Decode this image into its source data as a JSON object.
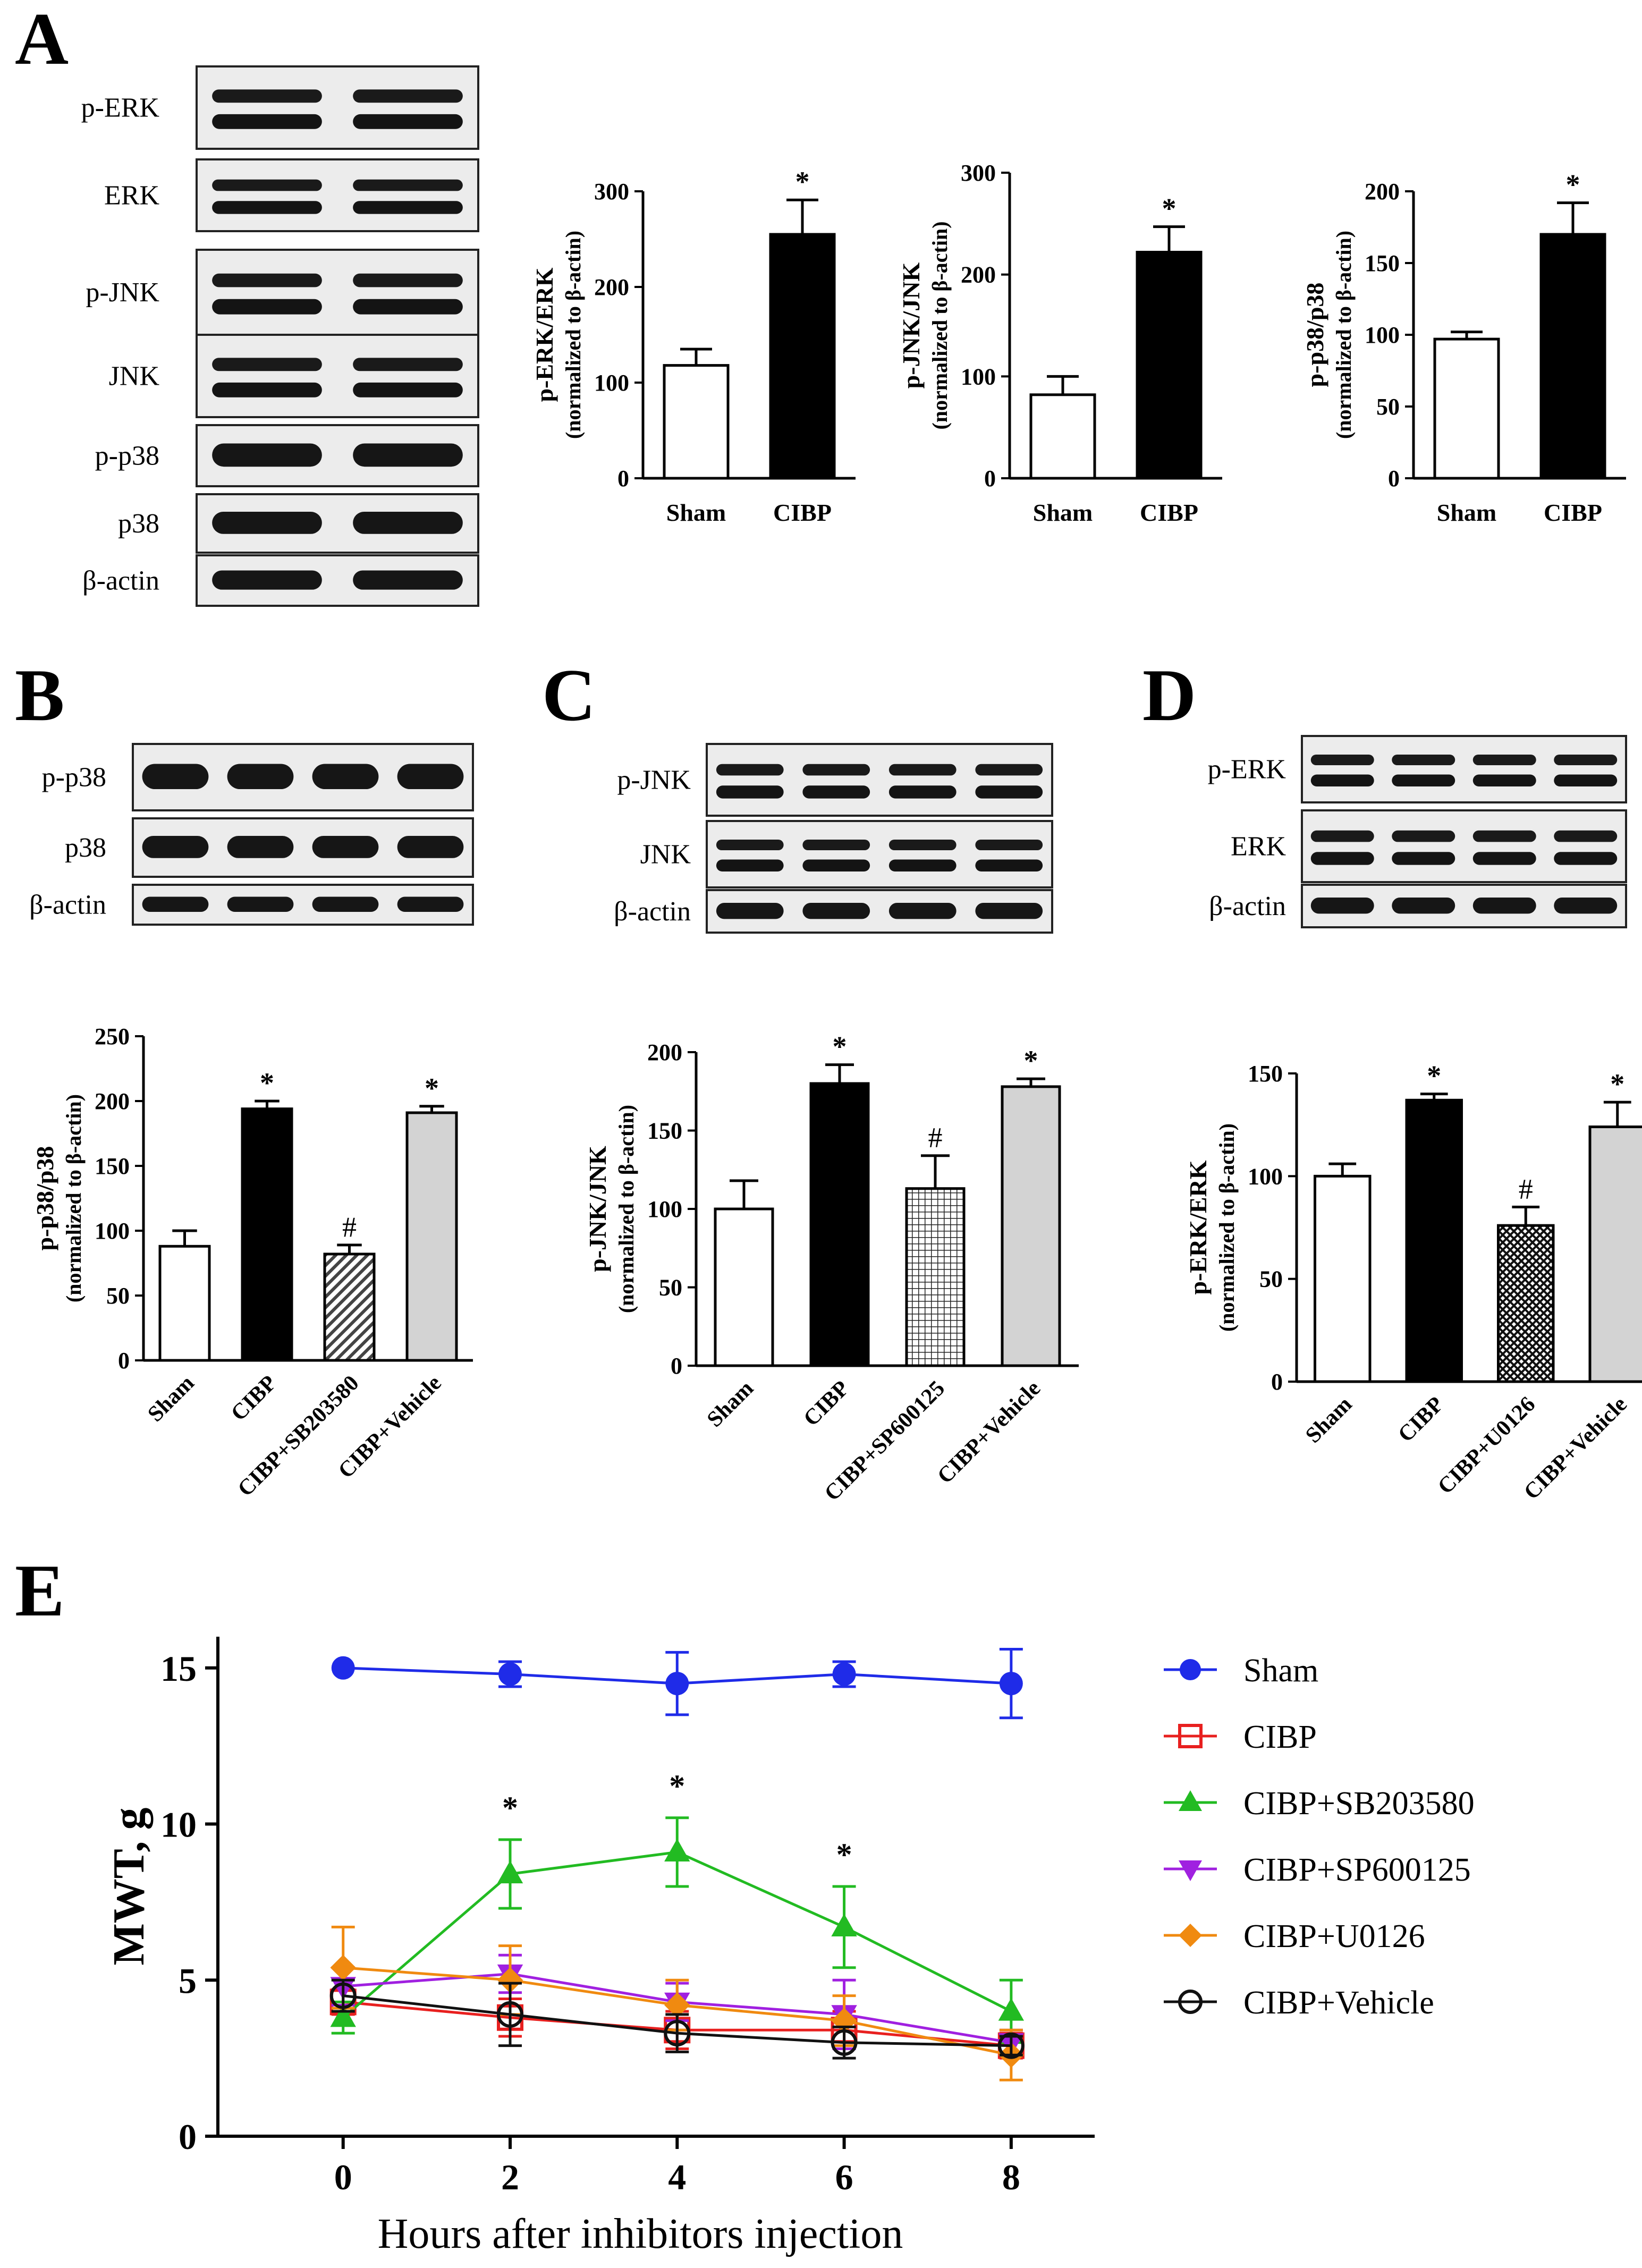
{
  "panel_labels": [
    "A",
    "B",
    "C",
    "D",
    "E"
  ],
  "blots": {
    "A": {
      "labels": [
        "p-ERK",
        "ERK",
        "p-JNK",
        "JNK",
        "p-p38",
        "p38",
        "β-actin"
      ]
    },
    "B": {
      "labels": [
        "p-p38",
        "p38",
        "β-actin"
      ]
    },
    "C": {
      "labels": [
        "p-JNK",
        "JNK",
        "β-actin"
      ]
    },
    "D": {
      "labels": [
        "p-ERK",
        "ERK",
        "β-actin"
      ]
    }
  },
  "chart_data": [
    {
      "id": "A1",
      "type": "bar",
      "categories": [
        "Sham",
        "CIBP"
      ],
      "values": [
        118,
        255
      ],
      "errors": [
        17,
        36
      ],
      "marks": [
        "",
        "*"
      ],
      "patterns": [
        "white",
        "black"
      ],
      "ylabel": "p-ERK/ERK",
      "ylabel2": "(normalized to β-actin)",
      "ylim": [
        0,
        300
      ],
      "yticks": [
        0,
        100,
        200,
        300
      ],
      "rotate": false
    },
    {
      "id": "A2",
      "type": "bar",
      "categories": [
        "Sham",
        "CIBP"
      ],
      "values": [
        82,
        222
      ],
      "errors": [
        18,
        25
      ],
      "marks": [
        "",
        "*"
      ],
      "patterns": [
        "white",
        "black"
      ],
      "ylabel": "p-JNK/JNK",
      "ylabel2": "(normalized to β-actin)",
      "ylim": [
        0,
        300
      ],
      "yticks": [
        0,
        100,
        200,
        300
      ],
      "rotate": false
    },
    {
      "id": "A3",
      "type": "bar",
      "categories": [
        "Sham",
        "CIBP"
      ],
      "values": [
        97,
        170
      ],
      "errors": [
        5,
        22
      ],
      "marks": [
        "",
        "*"
      ],
      "patterns": [
        "white",
        "black"
      ],
      "ylabel": "p-p38/p38",
      "ylabel2": "(normalized to β-actin)",
      "ylim": [
        0,
        200
      ],
      "yticks": [
        0,
        50,
        100,
        150,
        200
      ],
      "rotate": false
    },
    {
      "id": "B",
      "type": "bar",
      "categories": [
        "Sham",
        "CIBP",
        "CIBP+SB203580",
        "CIBP+Vehicle"
      ],
      "values": [
        88,
        194,
        82,
        191
      ],
      "errors": [
        12,
        6,
        7,
        5
      ],
      "marks": [
        "",
        "*",
        "#",
        "*"
      ],
      "patterns": [
        "white",
        "black",
        "diag",
        "gray"
      ],
      "ylabel": "p-p38/p38",
      "ylabel2": "(normalized to β-actin)",
      "ylim": [
        0,
        250
      ],
      "yticks": [
        0,
        50,
        100,
        150,
        200,
        250
      ],
      "rotate": true
    },
    {
      "id": "C",
      "type": "bar",
      "categories": [
        "Sham",
        "CIBP",
        "CIBP+SP600125",
        "CIBP+Vehicle"
      ],
      "values": [
        100,
        180,
        113,
        178
      ],
      "errors": [
        18,
        12,
        21,
        5
      ],
      "marks": [
        "",
        "*",
        "#",
        "*"
      ],
      "patterns": [
        "white",
        "black",
        "grid",
        "gray"
      ],
      "ylabel": "p-JNK/JNK",
      "ylabel2": "(normalized to β-actin)",
      "ylim": [
        0,
        200
      ],
      "yticks": [
        0,
        50,
        100,
        150,
        200
      ],
      "rotate": true
    },
    {
      "id": "D",
      "type": "bar",
      "categories": [
        "Sham",
        "CIBP",
        "CIBP+U0126",
        "CIBP+Vehicle"
      ],
      "values": [
        100,
        137,
        76,
        124
      ],
      "errors": [
        6,
        3,
        9,
        12
      ],
      "marks": [
        "",
        "*",
        "#",
        "*"
      ],
      "patterns": [
        "white",
        "black",
        "cross",
        "gray"
      ],
      "ylabel": "p-ERK/ERK",
      "ylabel2": "(normalized to β-actin)",
      "ylim": [
        0,
        150
      ],
      "yticks": [
        0,
        50,
        100,
        150
      ],
      "rotate": true
    },
    {
      "id": "E",
      "type": "line",
      "x": [
        0,
        2,
        4,
        6,
        8
      ],
      "xlabel": "Hours after inhibitors injection",
      "ylabel": "MWT, g",
      "ylim": [
        0,
        16
      ],
      "yticks": [
        0,
        5,
        10,
        15
      ],
      "xticks": [
        0,
        2,
        4,
        6,
        8
      ],
      "annotations": [
        {
          "x": 2,
          "text": "*"
        },
        {
          "x": 4,
          "text": "*"
        },
        {
          "x": 6,
          "text": "*"
        }
      ],
      "series": [
        {
          "name": "Sham",
          "color": "#1f2be8",
          "marker": "circle-filled",
          "values": [
            15.0,
            14.8,
            14.5,
            14.8,
            14.5
          ],
          "errors": [
            0,
            0.4,
            1.0,
            0.4,
            1.1
          ]
        },
        {
          "name": "CIBP",
          "color": "#e8201f",
          "marker": "square-open",
          "values": [
            4.3,
            3.8,
            3.4,
            3.4,
            2.9
          ],
          "errors": [
            0.4,
            0.6,
            0.6,
            0.6,
            0.4
          ]
        },
        {
          "name": "CIBP+SB203580",
          "color": "#22bb22",
          "marker": "triangle-up",
          "values": [
            3.8,
            8.4,
            9.1,
            6.7,
            4.0
          ],
          "errors": [
            0.5,
            1.1,
            1.1,
            1.3,
            1.0
          ]
        },
        {
          "name": "CIBP+SP600125",
          "color": "#a020e0",
          "marker": "triangle-down",
          "values": [
            4.8,
            5.2,
            4.3,
            3.9,
            3.0
          ],
          "errors": [
            0.6,
            0.6,
            0.6,
            1.1,
            0.4
          ]
        },
        {
          "name": "CIBP+U0126",
          "color": "#f08a10",
          "marker": "diamond",
          "values": [
            5.4,
            5.0,
            4.2,
            3.7,
            2.6
          ],
          "errors": [
            1.3,
            1.1,
            0.8,
            0.8,
            0.8
          ]
        },
        {
          "name": "CIBP+Vehicle",
          "color": "#111111",
          "marker": "circle-open",
          "values": [
            4.5,
            3.9,
            3.3,
            3.0,
            2.9
          ],
          "errors": [
            0.5,
            1.0,
            0.6,
            0.5,
            0.3
          ]
        }
      ]
    }
  ]
}
